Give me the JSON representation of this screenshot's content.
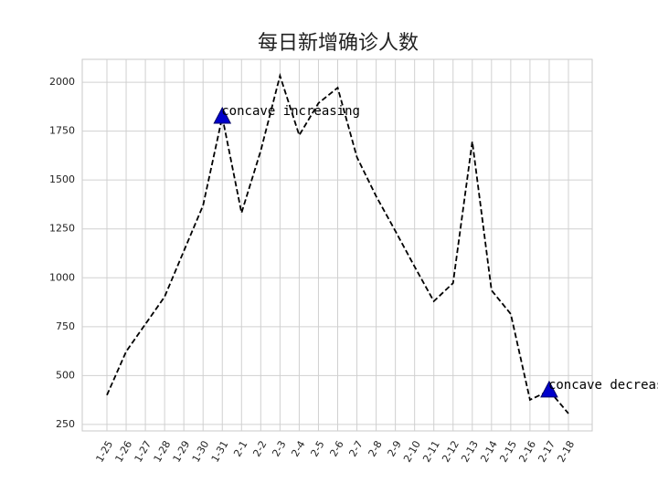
{
  "chart_data": {
    "type": "line",
    "title": "每日新增确诊人数",
    "categories": [
      "1-25",
      "1-26",
      "1-27",
      "1-28",
      "1-29",
      "1-30",
      "1-31",
      "2-1",
      "2-2",
      "2-3",
      "2-4",
      "2-5",
      "2-6",
      "2-7",
      "2-8",
      "2-9",
      "2-10",
      "2-11",
      "2-12",
      "2-13",
      "2-14",
      "2-15",
      "2-16",
      "2-17",
      "2-18"
    ],
    "series": [
      {
        "color": "#000000",
        "values": [
          400,
          623,
          763,
          903,
          1137,
          1370,
          1823,
          1332,
          1650,
          2033,
          1729,
          1893,
          1972,
          1617,
          1417,
          1239,
          1057,
          880,
          973,
          1697,
          936,
          815,
          376,
          423,
          306
        ]
      }
    ],
    "ylim": [
      217,
      2117
    ],
    "yticks": [
      250,
      500,
      750,
      1000,
      1250,
      1500,
      1750,
      2000
    ],
    "grid": true,
    "annotations": [
      {
        "x": "1-31",
        "text": "concave increasing",
        "color": "#0000cc"
      },
      {
        "x": "2-17",
        "text": "concave decreasing",
        "color": "#0000cc"
      }
    ]
  }
}
